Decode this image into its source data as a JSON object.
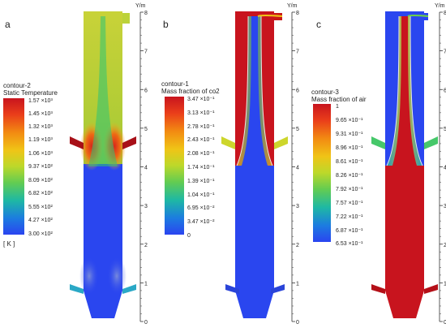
{
  "axis_unit": "Y/m",
  "axis_ticks": [
    "8",
    "7",
    "6",
    "5",
    "4",
    "3",
    "2",
    "1",
    "0"
  ],
  "panels": [
    {
      "letter": "a",
      "legend": {
        "title_lines": [
          "contour-2",
          "Static Temperature"
        ],
        "labels": [
          "1.57 ×10³",
          "1.45 ×10³",
          "1.32 ×10³",
          "1.19 ×10³",
          "1.06 ×10³",
          "9.37 ×10²",
          "8.09 ×10²",
          "6.82 ×10²",
          "5.55 ×10²",
          "4.27 ×10²",
          "3.00 ×10²"
        ],
        "unit": "[ K ]"
      }
    },
    {
      "letter": "b",
      "legend": {
        "title_lines": [
          "contour-1",
          "Mass fraction of co2"
        ],
        "labels": [
          "3.47 ×10⁻¹",
          "3.13 ×10⁻¹",
          "2.78 ×10⁻¹",
          "2.43 ×10⁻¹",
          "2.08 ×10⁻¹",
          "1.74 ×10⁻¹",
          "1.39 ×10⁻¹",
          "1.04 ×10⁻¹",
          "6.95 ×10⁻²",
          "3.47 ×10⁻²",
          "0"
        ],
        "unit": ""
      }
    },
    {
      "letter": "c",
      "legend": {
        "title_lines": [
          "contour-3",
          "Mass fraction of air"
        ],
        "labels": [
          "1",
          "9.65 ×10⁻¹",
          "9.31 ×10⁻¹",
          "8.96 ×10⁻¹",
          "8.61 ×10⁻¹",
          "8.26 ×10⁻¹",
          "7.92 ×10⁻¹",
          "7.57 ×10⁻¹",
          "7.22 ×10⁻¹",
          "6.87 ×10⁻¹",
          "6.53 ×10⁻¹"
        ],
        "unit": ""
      }
    }
  ],
  "colormap": [
    "#c8141e",
    "#e8401a",
    "#f07a12",
    "#f2ae10",
    "#ecd81e",
    "#b6d82c",
    "#6cd048",
    "#2ec47e",
    "#1aa8bc",
    "#1c6ae6",
    "#2a44f0"
  ]
}
